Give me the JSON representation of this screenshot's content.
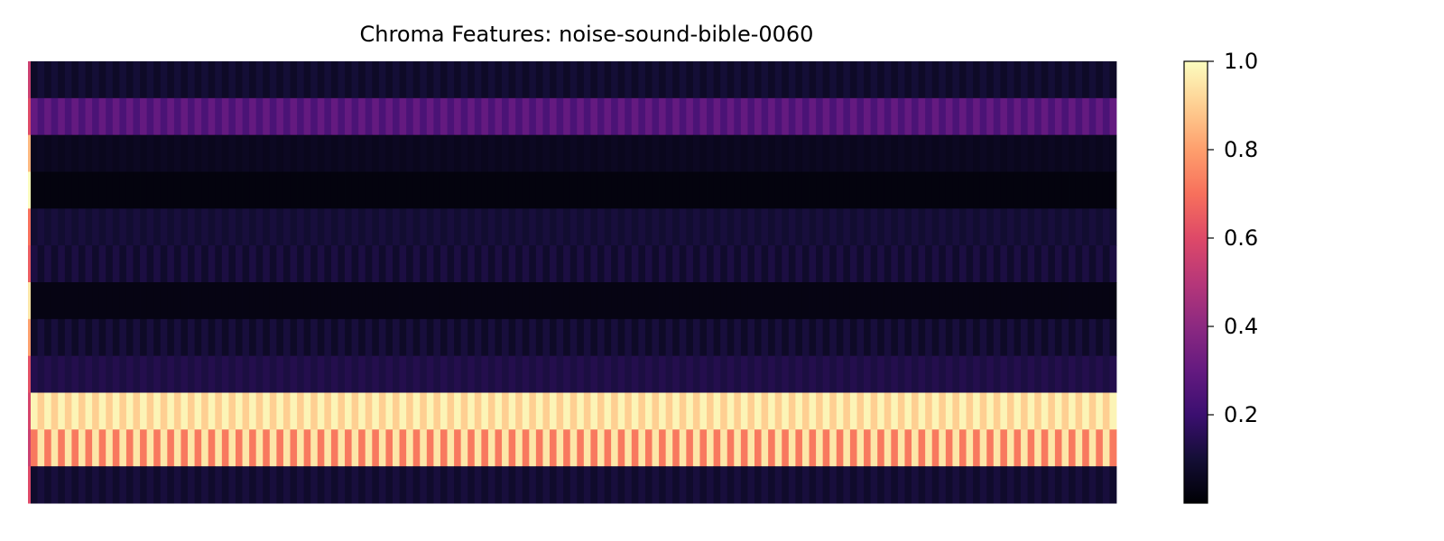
{
  "chart_data": {
    "type": "heatmap",
    "title": "Chroma Features: noise-sound-bible-0060",
    "xlabel": "",
    "ylabel": "",
    "n_frames": 160,
    "rows": [
      {
        "values": [
          0.55,
          0.07,
          0.1
        ]
      },
      {
        "values": [
          0.6,
          0.3,
          0.24
        ]
      },
      {
        "values": [
          0.85,
          0.05,
          0.06
        ]
      },
      {
        "values": [
          1.0,
          0.02,
          0.02
        ]
      },
      {
        "values": [
          0.7,
          0.09,
          0.11
        ]
      },
      {
        "values": [
          0.65,
          0.12,
          0.08
        ]
      },
      {
        "values": [
          0.95,
          0.03,
          0.03
        ]
      },
      {
        "values": [
          0.8,
          0.07,
          0.11
        ]
      },
      {
        "values": [
          0.62,
          0.14,
          0.12
        ]
      },
      {
        "values": [
          0.58,
          0.98,
          0.9
        ]
      },
      {
        "values": [
          0.55,
          0.72,
          0.95
        ]
      },
      {
        "values": [
          0.6,
          0.08,
          0.11
        ]
      }
    ],
    "colormap": "magma",
    "colorbar": {
      "range": [
        0.0,
        1.0
      ],
      "ticks": [
        0.2,
        0.4,
        0.6,
        0.8,
        1.0
      ],
      "tick_labels": [
        "0.2",
        "0.4",
        "0.6",
        "0.8",
        "1.0"
      ]
    },
    "grid": false
  }
}
